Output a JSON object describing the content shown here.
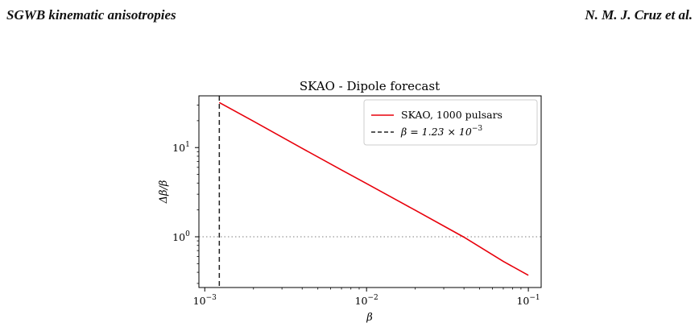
{
  "header": {
    "left": "SGWB kinematic anisotropies",
    "right": "N. M. J. Cruz et al."
  },
  "chart_data": {
    "type": "line",
    "title": "SKAO - Dipole forecast",
    "xlabel": "β",
    "ylabel": "Δβ/β",
    "xscale": "log",
    "yscale": "log",
    "xlim": [
      0.00092,
      0.12
    ],
    "ylim": [
      0.27,
      38
    ],
    "xticks": [
      {
        "value": 0.001,
        "base": "10",
        "exp": "−3"
      },
      {
        "value": 0.01,
        "base": "10",
        "exp": "−2"
      },
      {
        "value": 0.1,
        "base": "10",
        "exp": "−1"
      }
    ],
    "yticks": [
      {
        "value": 1,
        "base": "10",
        "exp": "0"
      },
      {
        "value": 10,
        "base": "10",
        "exp": "1"
      }
    ],
    "series": [
      {
        "name": "SKAO, 1000 pulsars",
        "color": "#e8000b",
        "style": "solid",
        "x": [
          0.00123,
          0.002,
          0.004,
          0.007,
          0.01,
          0.02,
          0.04,
          0.07,
          0.1
        ],
        "y": [
          32,
          19.7,
          9.8,
          5.6,
          3.95,
          1.98,
          0.99,
          0.53,
          0.37
        ]
      }
    ],
    "reference_lines": [
      {
        "orientation": "vertical",
        "value": 0.00123,
        "color": "#222222",
        "style": "dashed",
        "label": "β = 1.23 × 10",
        "label_exp": "−3"
      },
      {
        "orientation": "horizontal",
        "value": 1,
        "color": "#999999",
        "style": "dotted"
      }
    ],
    "legend": "top-right",
    "grid": false
  }
}
